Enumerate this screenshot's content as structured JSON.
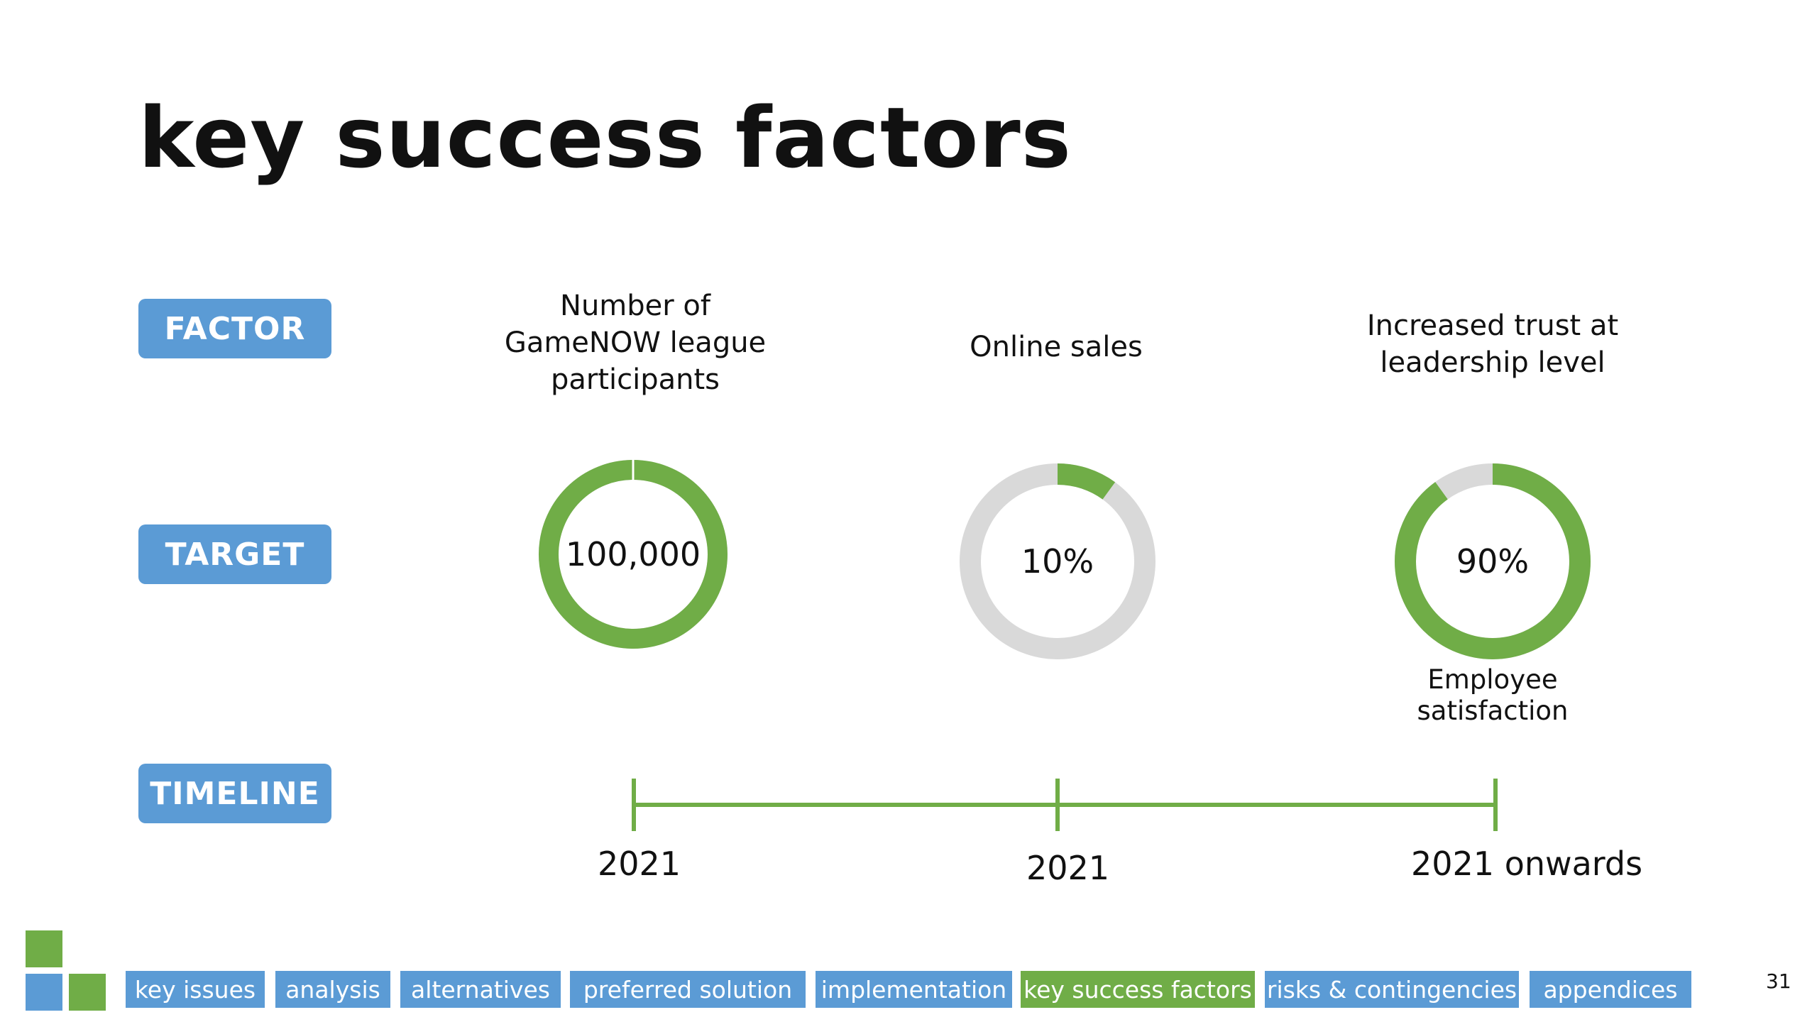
{
  "title": "key success factors",
  "row_labels": {
    "factor": "FACTOR",
    "target": "TARGET",
    "timeline": "TIMELINE"
  },
  "colors": {
    "accent_blue": "#5b9bd5",
    "accent_green": "#70ad47",
    "track_grey": "#d9d9d9"
  },
  "factors": [
    {
      "lines": [
        "Number of",
        "GameNOW league",
        "participants"
      ],
      "target": "100,000",
      "progress": 1.0,
      "sub_label": [],
      "timeline": "2021"
    },
    {
      "lines": [
        "Online sales"
      ],
      "target": "10%",
      "progress": 0.1,
      "sub_label": [],
      "timeline": "2021"
    },
    {
      "lines": [
        "Increased trust at",
        "leadership level"
      ],
      "target": "90%",
      "progress": 0.9,
      "sub_label": [
        "Employee",
        "satisfaction"
      ],
      "timeline": "2021 onwards"
    }
  ],
  "nav": {
    "items": [
      "key issues",
      "analysis",
      "alternatives",
      "preferred solution",
      "implementation",
      "key success factors",
      "risks & contingencies",
      "appendices"
    ],
    "active": "key success factors"
  },
  "page_number": "31"
}
